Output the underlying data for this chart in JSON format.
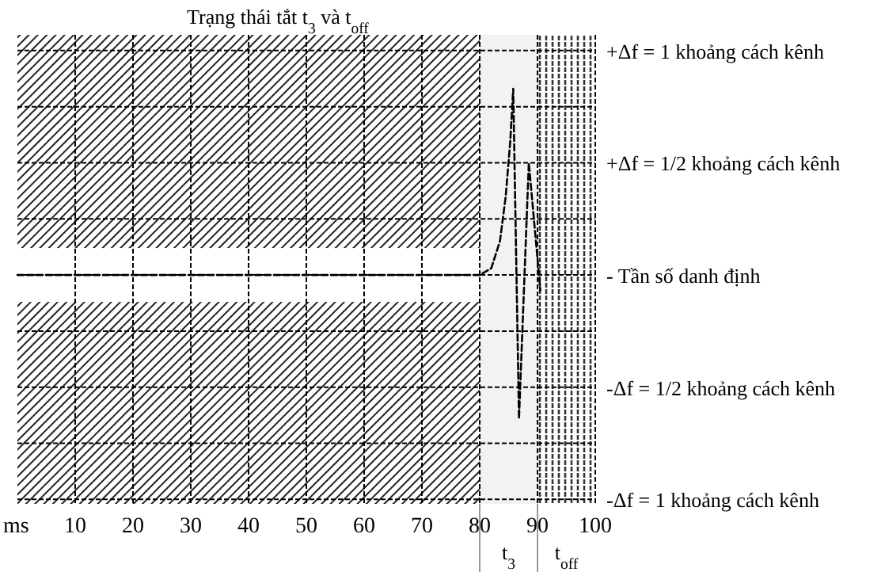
{
  "chart_data": {
    "type": "line",
    "title": "Trạng thái tắt t$_{3}$ và t$_{off}$",
    "xlabel": "ms",
    "xlim": [
      0,
      100
    ],
    "xticks": [
      10,
      20,
      30,
      40,
      50,
      60,
      70,
      80,
      90,
      100
    ],
    "ylim": [
      -1.02,
      1.07
    ],
    "yticks": [
      {
        "value": -1,
        "label": "-Δf = 1 khoảng cách kênh"
      },
      {
        "value": -0.75,
        "label": null
      },
      {
        "value": -0.5,
        "label": "-Δf = 1/2 khoảng cách kênh"
      },
      {
        "value": -0.25,
        "label": null
      },
      {
        "value": 0,
        "label": "- Tần số danh định"
      },
      {
        "value": 0.25,
        "label": null
      },
      {
        "value": 0.5,
        "label": "+Δf = 1/2 khoảng cách kênh"
      },
      {
        "value": 0.75,
        "label": null
      },
      {
        "value": 1,
        "label": "+Δf = 1 khoảng cách kênh"
      }
    ],
    "grid": true,
    "line_style": "dashed",
    "series": [
      {
        "color": "#000000",
        "x": [
          0,
          80,
          82,
          83.5,
          84.5,
          85.3,
          85.8,
          86.8,
          88.5,
          90.5
        ],
        "values": [
          0,
          0,
          0.03,
          0.15,
          0.35,
          0.6,
          0.83,
          -0.64,
          0.5,
          -0.07
        ]
      }
    ],
    "bands": [
      {
        "axis": "x",
        "from": 0,
        "to": 80,
        "color": "#222222"
      },
      {
        "axis": "x",
        "from": 80,
        "to": 90,
        "label": "t$_{3}$",
        "color": "#f2f2f2"
      },
      {
        "axis": "x",
        "from": 90,
        "to": 100,
        "label": "t$_{off}$",
        "color": "#333333"
      },
      {
        "axis": "y",
        "from": -0.12,
        "to": 0.12,
        "color": "#ffffff"
      }
    ]
  }
}
